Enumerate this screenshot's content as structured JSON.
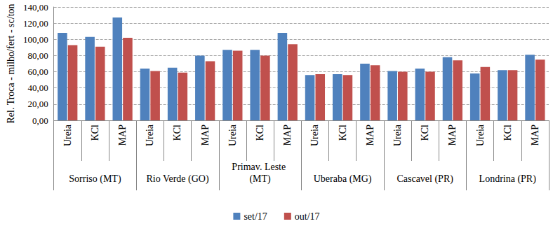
{
  "chart_data": {
    "type": "bar",
    "y_label": "Rel. Troca - milho/fert - sc/ton",
    "categories": [
      "Ureia",
      "KCl",
      "MAP",
      "Ureia",
      "KCl",
      "MAP",
      "Ureia",
      "KCl",
      "MAP",
      "Ureia",
      "KCl",
      "MAP",
      "Ureia",
      "KCl",
      "MAP",
      "Ureia",
      "KCl",
      "MAP"
    ],
    "groups": [
      "Sorriso (MT)",
      "Rio Verde (GO)",
      "Primav. Leste (MT)",
      "Uberaba (MG)",
      "Cascavel (PR)",
      "Londrina (PR)"
    ],
    "series": [
      {
        "name": "set/17",
        "color": "#4f81bd",
        "values": [
          108,
          103,
          127,
          64,
          65,
          80,
          87,
          87,
          108,
          56,
          57,
          70,
          61,
          64,
          78,
          58,
          62,
          81
        ]
      },
      {
        "name": "out/17",
        "color": "#c0504d",
        "values": [
          93,
          91,
          102,
          61,
          59,
          73,
          86,
          80,
          94,
          57,
          56,
          68,
          60,
          60,
          74,
          66,
          62,
          75
        ]
      }
    ],
    "ylim": [
      0,
      140
    ],
    "yticks": [
      {
        "value": 0,
        "label": "0,00"
      },
      {
        "value": 20,
        "label": "20,00"
      },
      {
        "value": 40,
        "label": "40,00"
      },
      {
        "value": 60,
        "label": "60,00"
      },
      {
        "value": 80,
        "label": "80,00"
      },
      {
        "value": 100,
        "label": "100,00"
      },
      {
        "value": 120,
        "label": "120,00"
      },
      {
        "value": 140,
        "label": "140,00"
      }
    ],
    "grid": true,
    "legend": "bottom"
  }
}
